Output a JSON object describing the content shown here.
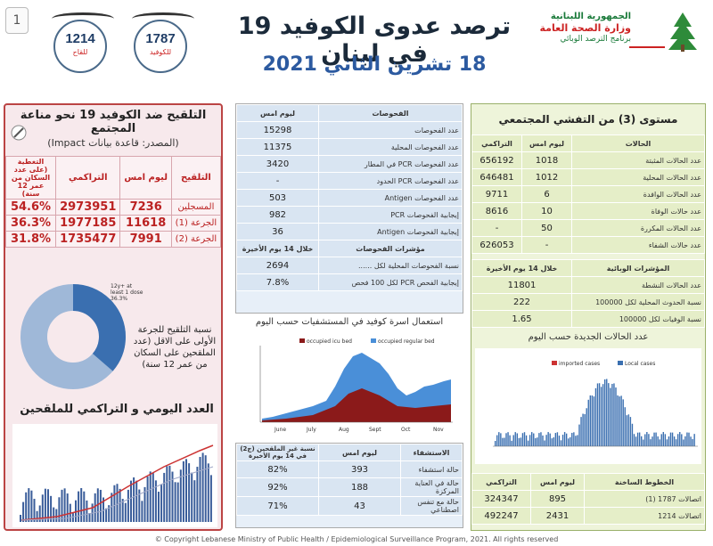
{
  "header": {
    "page_num": "1",
    "title": "ترصد عدوى الكوفيد 19 في لبنان",
    "date": "18 تشرين الثاني 2021",
    "ministry_line1": "الجمهورية اللبنانية",
    "ministry_line2": "وزارة الصحة العامة",
    "ministry_line3": "برنامج الترصد الوبائي"
  },
  "hotlines": [
    {
      "number": "1214",
      "caption": "للقاح"
    },
    {
      "number": "1787",
      "caption": "للكوفيد"
    }
  ],
  "vaccination": {
    "title": "التلقيح ضد الكوفيد 19 نحو مناعة المجتمع",
    "source": "(المصدر: قاعدة بيانات Impact)",
    "columns": [
      "التلقيح",
      "ليوم امس",
      "التراكمي",
      "التغطية (على عدد السكان من عمر 12 سنة)"
    ],
    "rows": [
      {
        "label": "المسجلين",
        "yesterday": "7236",
        "cumulative": "2973951",
        "coverage": "54.6%"
      },
      {
        "label": "الجرعة (1)",
        "yesterday": "11618",
        "cumulative": "1977185",
        "coverage": "36.3%"
      },
      {
        "label": "الجرعة (2)",
        "yesterday": "7991",
        "cumulative": "1735477",
        "coverage": "31.8%"
      }
    ],
    "donut_label": "12y+ at least 1 dose 36.3%",
    "donut_caption": "نسبة التلقيح للجرعة الأولى على الاقل (عدد الملقحين على السكان من عمر 12 سنة)",
    "daily_title": "العدد اليومي و التراكمي للملقحين"
  },
  "tests": {
    "columns": [
      "الفحوصات",
      "ليوم امس"
    ],
    "rows": [
      {
        "label": "عدد الفحوصات",
        "value": "15298"
      },
      {
        "label": "عدد الفحوصات المحلية",
        "value": "11375"
      },
      {
        "label": "عدد الفحوصات PCR في المطار",
        "value": "3420"
      },
      {
        "label": "عدد الفحوصات PCR الحدود",
        "value": "-"
      },
      {
        "label": "عدد الفحوصات Antigen",
        "value": "503"
      },
      {
        "label": "إيجابية الفحوصات PCR",
        "value": "982"
      },
      {
        "label": "إيجابية الفحوصات Antigen",
        "value": "36"
      }
    ],
    "indicators_columns": [
      "مؤشرات الفحوصات",
      "خلال 14 يوم الأخيرة"
    ],
    "indicators": [
      {
        "label": "نسبة الفحوصات المحلية لكل ......",
        "value": "2694"
      },
      {
        "label": "إيجابية الفحص PCR لكل 100 فحص",
        "value": "7.8%"
      }
    ]
  },
  "hosp_chart": {
    "title": "استعمال اسرة كوفيد في المستشفيات حسب اليوم",
    "legend": [
      "occupied icu bed",
      "occupied regular bed"
    ],
    "months": [
      "June",
      "July",
      "Aug",
      "Sept",
      "Oct",
      "Nov"
    ]
  },
  "hospitalization": {
    "columns": [
      "الاستشفاء",
      "ليوم امس",
      "نسبة غير الملقحين (ج2) في 14 يوم الأخيرة"
    ],
    "rows": [
      {
        "label": "حالة استشفاء",
        "value": "393",
        "pct": "82%"
      },
      {
        "label": "حالة في العناية المركزة",
        "value": "188",
        "pct": "92%"
      },
      {
        "label": "حالة مع تنفس اصطناعي",
        "value": "43",
        "pct": "71%"
      }
    ]
  },
  "community": {
    "title": "مستوى (3) من التفشي المجتمعي",
    "columns": [
      "الحالات",
      "ليوم امس",
      "التراكمي"
    ],
    "rows": [
      {
        "label": "عدد الحالات المثبتة",
        "yesterday": "1018",
        "cumulative": "656192"
      },
      {
        "label": "عدد الحالات المحلية",
        "yesterday": "1012",
        "cumulative": "646481"
      },
      {
        "label": "عدد الحالات الوافدة",
        "yesterday": "6",
        "cumulative": "9711"
      },
      {
        "label": "عدد حالات الوفاة",
        "yesterday": "10",
        "cumulative": "8616"
      },
      {
        "label": "عدد الحالات المكررة",
        "yesterday": "50",
        "cumulative": "-"
      },
      {
        "label": "عدد حالات الشفاء",
        "yesterday": "-",
        "cumulative": "626053"
      }
    ],
    "indicators_columns": [
      "المؤشرات الوبائية",
      "خلال 14 يوم الأخيرة"
    ],
    "indicators": [
      {
        "label": "عدد الحالات النشطة",
        "value": "11801"
      },
      {
        "label": "نسبة الحدوث المحلية لكل 100000",
        "value": "222"
      },
      {
        "label": "نسبة الوفيات لكل 100000",
        "value": "1.65"
      }
    ]
  },
  "cases_chart": {
    "title": "عدد الحالات الجديدة حسب اليوم",
    "legend": [
      "imported cases",
      "Local cases"
    ]
  },
  "hotlines_table": {
    "columns": [
      "الخطوط الساخنة",
      "ليوم امس",
      "التراكمي"
    ],
    "rows": [
      {
        "label": "اتصالات 1787 (1)",
        "yesterday": "895",
        "cumulative": "324347"
      },
      {
        "label": "اتصالات 1214",
        "yesterday": "2431",
        "cumulative": "492247"
      }
    ]
  },
  "footer": "© Copyright Lebanese Ministry of Public Health / Epidemiological Surveillance Program, 2021. All rights reserved",
  "colors": {
    "accent_red": "#b22222",
    "accent_blue": "#2c5aa0",
    "donut_blue": "#3a6fb0"
  }
}
